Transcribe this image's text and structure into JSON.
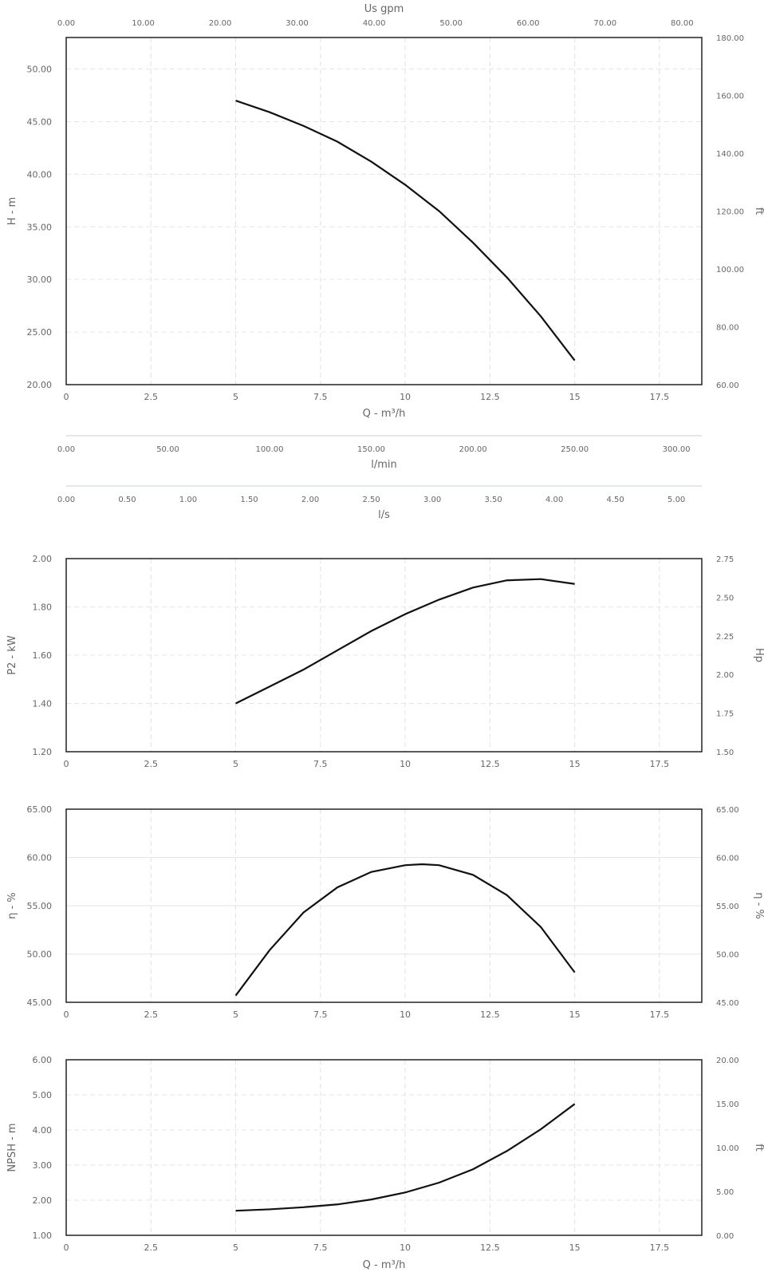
{
  "chart_data": [
    {
      "type": "line",
      "id": "head",
      "xlabel": "Q - m³/h",
      "ylabel": "H - m",
      "y2label": "ft",
      "x2label": "Us gpm",
      "xlim": [
        0,
        18.75
      ],
      "ylim": [
        20,
        53
      ],
      "y2lim": [
        60,
        180
      ],
      "x2lim": [
        0,
        82.56
      ],
      "xticks": [
        "0",
        "2.5",
        "5",
        "7.5",
        "10",
        "12.5",
        "15",
        "17.5"
      ],
      "yticks": [
        "20.00",
        "25.00",
        "30.00",
        "35.00",
        "40.00",
        "45.00",
        "50.00"
      ],
      "y2ticks": [
        "60.00",
        "80.00",
        "100.00",
        "120.00",
        "140.00",
        "160.00",
        "180.00"
      ],
      "x2ticks": [
        "0.00",
        "10.00",
        "20.00",
        "30.00",
        "40.00",
        "50.00",
        "60.00",
        "70.00",
        "80.00"
      ],
      "series": [
        {
          "x": [
            5,
            6,
            7,
            8,
            9,
            10,
            11,
            12,
            13,
            14,
            15
          ],
          "y": [
            47.0,
            45.9,
            44.6,
            43.1,
            41.2,
            39.0,
            36.5,
            33.5,
            30.2,
            26.5,
            22.3
          ]
        }
      ]
    },
    {
      "type": "line",
      "id": "power",
      "ylabel": "P2 - kW",
      "y2label": "Hp",
      "xlim": [
        0,
        18.75
      ],
      "ylim": [
        1.2,
        2.0
      ],
      "y2lim": [
        1.5,
        2.75
      ],
      "xticks": [
        "0",
        "2.5",
        "5",
        "7.5",
        "10",
        "12.5",
        "15",
        "17.5"
      ],
      "yticks": [
        "1.20",
        "1.40",
        "1.60",
        "1.80",
        "2.00"
      ],
      "y2ticks": [
        "1.50",
        "1.75",
        "2.00",
        "2.25",
        "2.50",
        "2.75"
      ],
      "series": [
        {
          "x": [
            5,
            6,
            7,
            8,
            9,
            10,
            11,
            12,
            13,
            14,
            15
          ],
          "y": [
            1.4,
            1.47,
            1.54,
            1.62,
            1.7,
            1.77,
            1.83,
            1.88,
            1.91,
            1.915,
            1.895
          ]
        }
      ]
    },
    {
      "type": "line",
      "id": "efficiency",
      "ylabel": "η - %",
      "y2label": "η - %",
      "xlim": [
        0,
        18.75
      ],
      "ylim": [
        45,
        65
      ],
      "y2lim": [
        45,
        65
      ],
      "xticks": [
        "0",
        "2.5",
        "5",
        "7.5",
        "10",
        "12.5",
        "15",
        "17.5"
      ],
      "yticks": [
        "45.00",
        "50.00",
        "55.00",
        "60.00",
        "65.00"
      ],
      "y2ticks": [
        "45.00",
        "50.00",
        "55.00",
        "60.00",
        "65.00"
      ],
      "series": [
        {
          "x": [
            5,
            6,
            7,
            8,
            9,
            10,
            10.5,
            11,
            12,
            13,
            14,
            15
          ],
          "y": [
            45.7,
            50.4,
            54.3,
            56.9,
            58.5,
            59.2,
            59.3,
            59.2,
            58.2,
            56.1,
            52.8,
            48.1
          ]
        }
      ]
    },
    {
      "type": "line",
      "id": "npsh",
      "xlabel": "Q - m³/h",
      "ylabel": "NPSH - m",
      "y2label": "ft",
      "xlim": [
        0,
        18.75
      ],
      "ylim": [
        1,
        6
      ],
      "y2lim": [
        0,
        20
      ],
      "xticks": [
        "0",
        "2.5",
        "5",
        "7.5",
        "10",
        "12.5",
        "15",
        "17.5"
      ],
      "yticks": [
        "1.00",
        "2.00",
        "3.00",
        "4.00",
        "5.00",
        "6.00"
      ],
      "y2ticks": [
        "0.00",
        "5.00",
        "10.00",
        "15.00",
        "20.00"
      ],
      "series": [
        {
          "x": [
            5,
            6,
            7,
            8,
            9,
            10,
            11,
            12,
            13,
            14,
            15
          ],
          "y": [
            1.7,
            1.74,
            1.8,
            1.88,
            2.02,
            2.22,
            2.5,
            2.88,
            3.4,
            4.02,
            4.74
          ]
        }
      ]
    }
  ],
  "scales": [
    {
      "id": "lmin",
      "label": "l/min",
      "lim": [
        0,
        312.5
      ],
      "ticks": [
        "0.00",
        "50.00",
        "100.00",
        "150.00",
        "200.00",
        "250.00",
        "300.00"
      ]
    },
    {
      "id": "ls",
      "label": "l/s",
      "lim": [
        0,
        5.208
      ],
      "ticks": [
        "0.00",
        "0.50",
        "1.00",
        "1.50",
        "2.00",
        "2.50",
        "3.00",
        "3.50",
        "4.00",
        "4.50",
        "5.00"
      ]
    }
  ]
}
